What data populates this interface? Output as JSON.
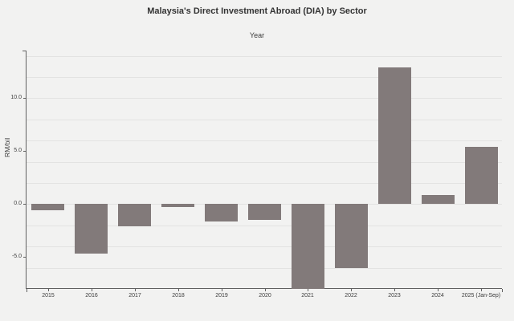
{
  "chart": {
    "title": "Malaysia's Direct Investment Abroad (DIA) by Sector",
    "xlabel": "Year",
    "ylabel": "RM/bil"
  },
  "chart_data": {
    "type": "bar",
    "title": "Malaysia's Direct Investment Abroad (DIA) by Sector",
    "xlabel": "Year",
    "ylabel": "RM/bil",
    "categories": [
      "2015",
      "2016",
      "2017",
      "2018",
      "2019",
      "2020",
      "2021",
      "2022",
      "2023",
      "2024",
      "2025 (Jan-Sep)"
    ],
    "values": [
      -0.6,
      -4.7,
      -2.1,
      -0.3,
      -1.6,
      -1.5,
      -8.0,
      -6.0,
      12.9,
      0.9,
      5.4
    ],
    "ylim": [
      -8.0,
      14.5
    ],
    "ytick_values": [
      10,
      5,
      0,
      -5
    ],
    "ytick_labels": [
      "10.0",
      "5.0",
      "0.0",
      "-5.0"
    ],
    "gridline_step": 2,
    "grid": true,
    "legend_position": "none",
    "bar_color": "#827a7a",
    "background_color": "#f2f2f1",
    "axis_color": "#606060",
    "gridline_color": "#e3e3e2"
  }
}
